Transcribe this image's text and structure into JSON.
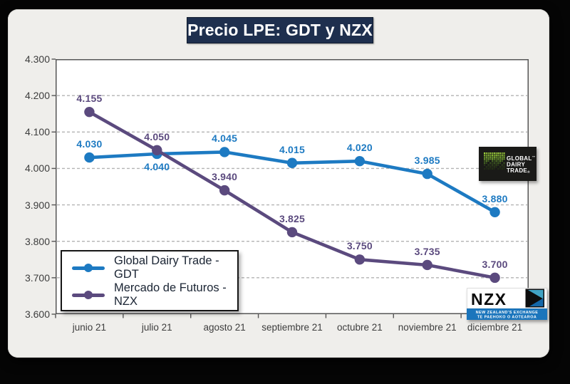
{
  "title": "Precio LPE: GDT y NZX",
  "chart_data": {
    "type": "line",
    "categories": [
      "junio 21",
      "julio 21",
      "agosto 21",
      "septiembre 21",
      "octubre 21",
      "noviembre 21",
      "diciembre 21"
    ],
    "series": [
      {
        "name": "Global Dairy Trade - GDT",
        "values": [
          4030,
          4040,
          4045,
          4015,
          4020,
          3985,
          3880
        ],
        "labels": [
          "4.030",
          "4.040",
          "4.045",
          "4.015",
          "4.020",
          "3.985",
          "3.880"
        ],
        "label_placement": [
          "above",
          "below",
          "above",
          "above",
          "above",
          "above",
          "above"
        ],
        "color": "#1D7AC2"
      },
      {
        "name": "Mercado de Futuros - NZX",
        "values": [
          4155,
          4050,
          3940,
          3825,
          3750,
          3735,
          3700
        ],
        "labels": [
          "4.155",
          "4.050",
          "3.940",
          "3.825",
          "3.750",
          "3.735",
          "3.700"
        ],
        "label_placement": [
          "above",
          "above",
          "above",
          "above",
          "above",
          "above",
          "above"
        ],
        "color": "#5B4A7E"
      }
    ],
    "ylim": [
      3600,
      4300
    ],
    "ytick_step": 100,
    "yticks": [
      "4.300",
      "4.200",
      "4.100",
      "4.000",
      "3.900",
      "3.800",
      "3.700",
      "3.600"
    ],
    "grid": "horizontal dashed",
    "legend_position": "inside bottom-left"
  },
  "logos": {
    "gdt": {
      "line1": "GLOBAL",
      "line2": "DAIRY",
      "line3": "TRADE",
      "tm": "™",
      "reg": "®"
    },
    "nzx": {
      "name": "NZX",
      "tagline1": "NEW ZEALAND'S EXCHANGE",
      "tagline2": "TE PAEHOKO O AOTEAROA"
    }
  },
  "colors": {
    "gdt_blue": "#1D7AC2",
    "nzx_purple": "#5B4A7E",
    "title_bg": "#1E2F4E",
    "slide_bg": "#EFEEEB",
    "gridline": "#B3B3B3",
    "axis_text": "#3D3D3D",
    "nzx_strip_blue": "#1B75BC",
    "nzx_teal": "#41A3C4",
    "nzx_dark_blue": "#1467A8",
    "gdt_green": "#97C93D"
  }
}
